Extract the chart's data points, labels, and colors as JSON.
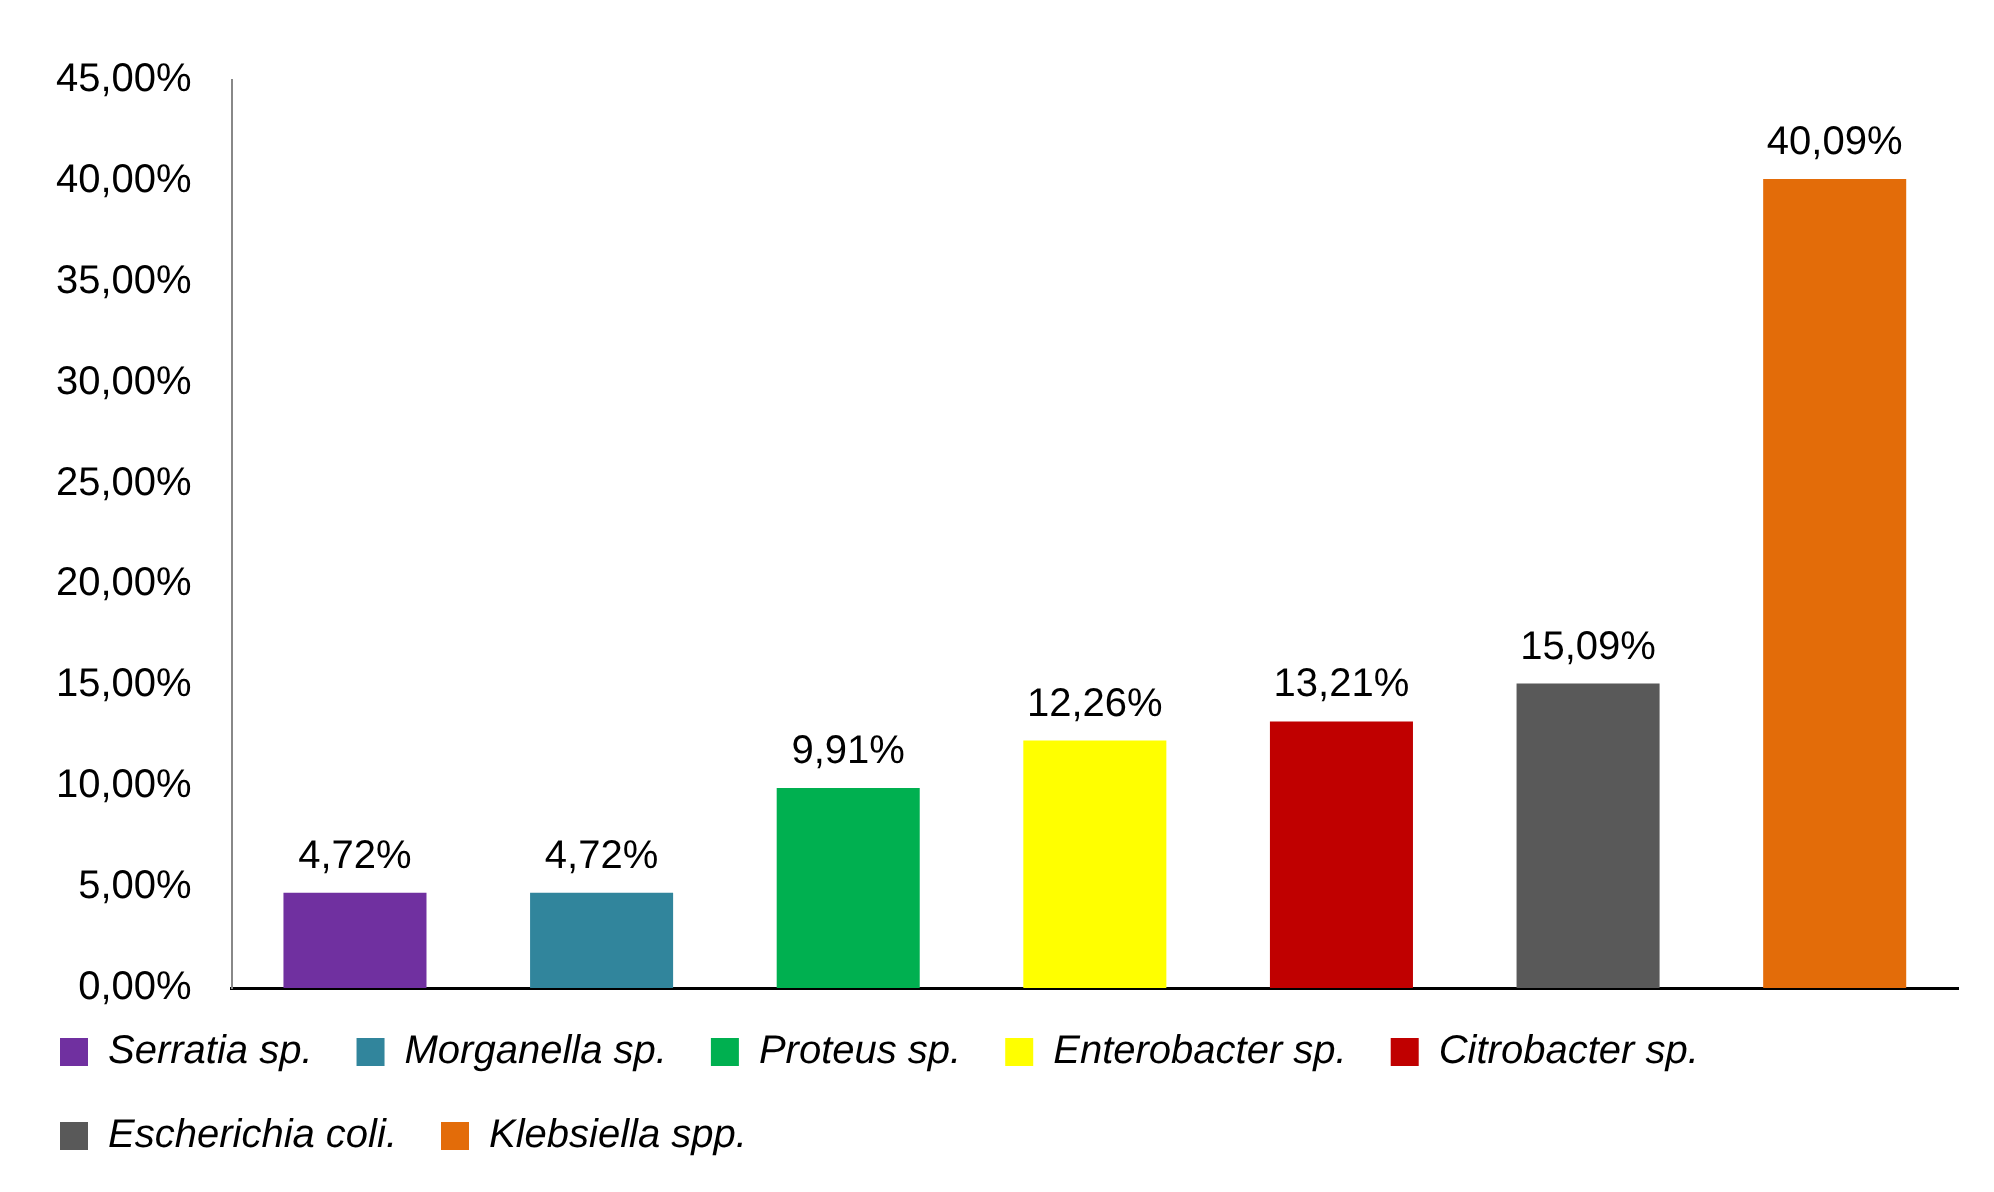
{
  "chart_data": {
    "type": "bar",
    "categories": [
      null,
      null,
      null,
      null,
      null,
      null,
      null
    ],
    "series": [
      {
        "name": "Serratia sp.",
        "color": "#7030a0",
        "values": [
          4.72,
          null,
          null,
          null,
          null,
          null,
          null
        ],
        "value_labels": [
          "4,72%",
          null,
          null,
          null,
          null,
          null,
          null
        ]
      },
      {
        "name": "Morganella sp.",
        "color": "#31859c",
        "values": [
          null,
          4.72,
          null,
          null,
          null,
          null,
          null
        ],
        "value_labels": [
          null,
          "4,72%",
          null,
          null,
          null,
          null,
          null
        ]
      },
      {
        "name": "Proteus sp.",
        "color": "#00b050",
        "values": [
          null,
          null,
          9.91,
          null,
          null,
          null,
          null
        ],
        "value_labels": [
          null,
          null,
          "9,91%",
          null,
          null,
          null,
          null
        ]
      },
      {
        "name": "Enterobacter sp.",
        "color": "#ffff00",
        "values": [
          null,
          null,
          null,
          12.26,
          null,
          null,
          null
        ],
        "value_labels": [
          null,
          null,
          null,
          "12,26%",
          null,
          null,
          null
        ]
      },
      {
        "name": "Citrobacter sp.",
        "color": "#c00000",
        "values": [
          null,
          null,
          null,
          null,
          13.21,
          null,
          null
        ],
        "value_labels": [
          null,
          null,
          null,
          null,
          "13,21%",
          null,
          null
        ]
      },
      {
        "name": "Escherichia coli.",
        "color": "#595959",
        "values": [
          null,
          null,
          null,
          null,
          null,
          15.09,
          null
        ],
        "value_labels": [
          null,
          null,
          null,
          null,
          null,
          "15,09%",
          null
        ]
      },
      {
        "name": "Klebsiella spp.",
        "color": "#e36c09",
        "values": [
          null,
          null,
          null,
          null,
          null,
          null,
          40.09
        ],
        "value_labels": [
          null,
          null,
          null,
          null,
          null,
          null,
          "40,09%"
        ]
      }
    ],
    "ylim": [
      0,
      45
    ],
    "yticks": [
      {
        "value": 0,
        "label": "0,00%"
      },
      {
        "value": 5,
        "label": "5,00%"
      },
      {
        "value": 10,
        "label": "10,00%"
      },
      {
        "value": 15,
        "label": "15,00%"
      },
      {
        "value": 20,
        "label": "20,00%"
      },
      {
        "value": 25,
        "label": "25,00%"
      },
      {
        "value": 30,
        "label": "30,00%"
      },
      {
        "value": 35,
        "label": "35,00%"
      },
      {
        "value": 40,
        "label": "40,00%"
      },
      {
        "value": 45,
        "label": "45,00%"
      }
    ],
    "grid": false,
    "legend": "bottom"
  }
}
